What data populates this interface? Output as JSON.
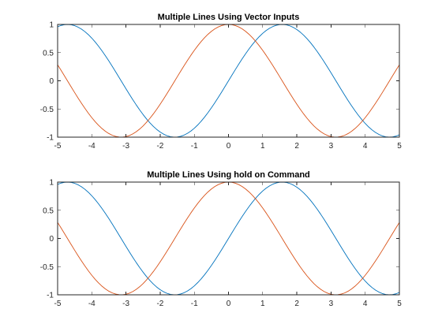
{
  "figure": {
    "background": "#ffffff"
  },
  "chart_data": [
    {
      "type": "line",
      "title": "Multiple Lines Using Vector Inputs",
      "xlabel": "",
      "ylabel": "",
      "xlim": [
        -5,
        5
      ],
      "ylim": [
        -1,
        1
      ],
      "xticks": [
        -5,
        -4,
        -3,
        -2,
        -1,
        0,
        1,
        2,
        3,
        4,
        5
      ],
      "xtick_labels": [
        "-5",
        "-4",
        "-3",
        "-2",
        "-1",
        "0",
        "1",
        "2",
        "3",
        "4",
        "5"
      ],
      "yticks": [
        -1,
        -0.5,
        0,
        0.5,
        1
      ],
      "ytick_labels": [
        "-1",
        "-0.5",
        "0",
        "0.5",
        "1"
      ],
      "grid": false,
      "series": [
        {
          "function": "sin",
          "color": "#0072bd",
          "x_start": -5,
          "x_end": 5,
          "x_step": 0.1,
          "x": [
            -5,
            -4.5,
            -4,
            -3.5,
            -3,
            -2.5,
            -2,
            -1.5,
            -1,
            -0.5,
            0,
            0.5,
            1,
            1.5,
            2,
            2.5,
            3,
            3.5,
            4,
            4.5,
            5
          ],
          "y": [
            0.959,
            0.978,
            0.757,
            0.351,
            -0.141,
            -0.598,
            -0.909,
            -0.997,
            -0.841,
            -0.479,
            0,
            0.479,
            0.841,
            0.997,
            0.909,
            0.598,
            0.141,
            -0.351,
            -0.757,
            -0.978,
            -0.959
          ]
        },
        {
          "function": "cos",
          "color": "#d95319",
          "x_start": -5,
          "x_end": 5,
          "x_step": 0.1,
          "x": [
            -5,
            -4.5,
            -4,
            -3.5,
            -3,
            -2.5,
            -2,
            -1.5,
            -1,
            -0.5,
            0,
            0.5,
            1,
            1.5,
            2,
            2.5,
            3,
            3.5,
            4,
            4.5,
            5
          ],
          "y": [
            0.284,
            -0.211,
            -0.654,
            -0.936,
            -0.99,
            -0.801,
            -0.416,
            0.071,
            0.54,
            0.878,
            1,
            0.878,
            0.54,
            0.071,
            -0.416,
            -0.801,
            -0.99,
            -0.936,
            -0.654,
            -0.211,
            0.284
          ]
        }
      ]
    },
    {
      "type": "line",
      "title": "Multiple Lines Using hold on Command",
      "xlabel": "",
      "ylabel": "",
      "xlim": [
        -5,
        5
      ],
      "ylim": [
        -1,
        1
      ],
      "xticks": [
        -5,
        -4,
        -3,
        -2,
        -1,
        0,
        1,
        2,
        3,
        4,
        5
      ],
      "xtick_labels": [
        "-5",
        "-4",
        "-3",
        "-2",
        "-1",
        "0",
        "1",
        "2",
        "3",
        "4",
        "5"
      ],
      "yticks": [
        -1,
        -0.5,
        0,
        0.5,
        1
      ],
      "ytick_labels": [
        "-1",
        "-0.5",
        "0",
        "0.5",
        "1"
      ],
      "grid": false,
      "series": [
        {
          "function": "sin",
          "color": "#0072bd",
          "x_start": -5,
          "x_end": 5,
          "x_step": 0.1,
          "x": [
            -5,
            -4.5,
            -4,
            -3.5,
            -3,
            -2.5,
            -2,
            -1.5,
            -1,
            -0.5,
            0,
            0.5,
            1,
            1.5,
            2,
            2.5,
            3,
            3.5,
            4,
            4.5,
            5
          ],
          "y": [
            0.959,
            0.978,
            0.757,
            0.351,
            -0.141,
            -0.598,
            -0.909,
            -0.997,
            -0.841,
            -0.479,
            0,
            0.479,
            0.841,
            0.997,
            0.909,
            0.598,
            0.141,
            -0.351,
            -0.757,
            -0.978,
            -0.959
          ]
        },
        {
          "function": "cos",
          "color": "#d95319",
          "x_start": -5,
          "x_end": 5,
          "x_step": 0.1,
          "x": [
            -5,
            -4.5,
            -4,
            -3.5,
            -3,
            -2.5,
            -2,
            -1.5,
            -1,
            -0.5,
            0,
            0.5,
            1,
            1.5,
            2,
            2.5,
            3,
            3.5,
            4,
            4.5,
            5
          ],
          "y": [
            0.284,
            -0.211,
            -0.654,
            -0.936,
            -0.99,
            -0.801,
            -0.416,
            0.071,
            0.54,
            0.878,
            1,
            0.878,
            0.54,
            0.071,
            -0.416,
            -0.801,
            -0.99,
            -0.936,
            -0.654,
            -0.211,
            0.284
          ]
        }
      ]
    }
  ]
}
